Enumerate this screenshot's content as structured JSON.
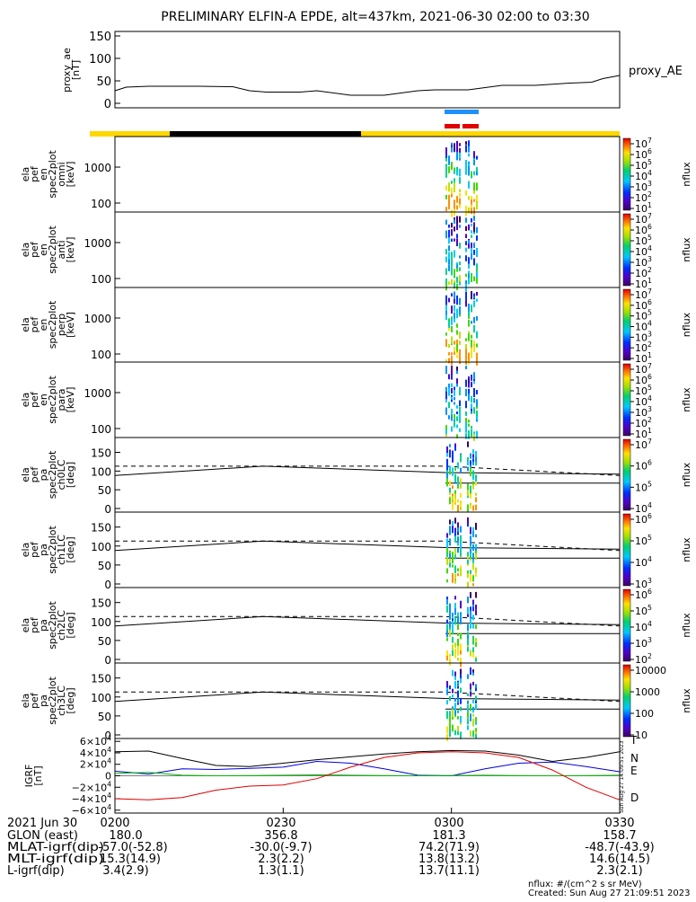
{
  "title": "PRELIMINARY ELFIN-A EPDE, alt=437km, 2021-06-30 02:00 to 03:30",
  "colors": {
    "bar_yellow": "#ffd700",
    "bar_black": "#000000",
    "mark_blue": "#1e90ff",
    "mark_red": "#e00000",
    "N": "#0000dd",
    "E": "#00bb00",
    "D": "#dd0000",
    "T": "#000000"
  },
  "chart_data": [
    {
      "type": "line",
      "name": "proxy_ae",
      "ylabel_lines": [
        "proxy_ae",
        "[nT]"
      ],
      "ylim": [
        -10,
        160
      ],
      "yticks": [
        "150",
        "100",
        "50",
        "0"
      ],
      "series": [
        {
          "name": "proxy_AE",
          "x": [
            "02:00",
            "02:02",
            "02:06",
            "02:15",
            "02:21",
            "02:24",
            "02:27",
            "02:33",
            "02:36",
            "02:42",
            "02:48",
            "02:54",
            "02:57",
            "03:03",
            "03:09",
            "03:15",
            "03:21",
            "03:25",
            "03:27",
            "03:30"
          ],
          "values": [
            28,
            36,
            38,
            38,
            37,
            28,
            25,
            25,
            28,
            18,
            18,
            28,
            30,
            30,
            40,
            40,
            45,
            47,
            55,
            62
          ]
        }
      ]
    },
    {
      "type": "heatmap",
      "name": "spectrograms",
      "panels": [
        {
          "ylabel_lines": [
            "ela",
            "pef",
            "en",
            "spec2plot",
            "omni",
            "[keV]"
          ],
          "yticks": [
            "1000",
            "100"
          ],
          "cbar_ticks": [
            "10^7",
            "10^6",
            "10^5",
            "10^4",
            "10^3",
            "10^2",
            "10^1"
          ],
          "cbar_label": "nflux"
        },
        {
          "ylabel_lines": [
            "ela",
            "pef",
            "en",
            "spec2plot",
            "anti",
            "[keV]"
          ],
          "yticks": [
            "1000",
            "100"
          ],
          "cbar_ticks": [
            "10^7",
            "10^6",
            "10^5",
            "10^4",
            "10^3",
            "10^2",
            "10^1"
          ],
          "cbar_label": "nflux"
        },
        {
          "ylabel_lines": [
            "ela",
            "pef",
            "en",
            "spec2plot",
            "perp",
            "[keV]"
          ],
          "yticks": [
            "1000",
            "100"
          ],
          "cbar_ticks": [
            "10^7",
            "10^6",
            "10^5",
            "10^4",
            "10^3",
            "10^2",
            "10^1"
          ],
          "cbar_label": "nflux"
        },
        {
          "ylabel_lines": [
            "ela",
            "pef",
            "en",
            "spec2plot",
            "para",
            "[keV]"
          ],
          "yticks": [
            "1000",
            "100"
          ],
          "cbar_ticks": [
            "10^7",
            "10^6",
            "10^5",
            "10^4",
            "10^3",
            "10^2",
            "10^1"
          ],
          "cbar_label": "nflux"
        }
      ]
    },
    {
      "type": "heatmap",
      "name": "pitch_angle",
      "panels": [
        {
          "ylabel_lines": [
            "ela",
            "pef",
            "pa",
            "spec2plot",
            "ch0LC",
            "[deg]"
          ],
          "yticks": [
            "150",
            "100",
            "50",
            "0"
          ],
          "cbar_ticks": [
            "10^7",
            "10^6",
            "10^5",
            "10^4"
          ],
          "cbar_label": "nflux"
        },
        {
          "ylabel_lines": [
            "ela",
            "pef",
            "pa",
            "spec2plot",
            "ch1LC",
            "[deg]"
          ],
          "yticks": [
            "150",
            "100",
            "50",
            "0"
          ],
          "cbar_ticks": [
            "10^6",
            "10^5",
            "10^4",
            "10^3"
          ],
          "cbar_label": "nflux"
        },
        {
          "ylabel_lines": [
            "ela",
            "pef",
            "pa",
            "spec2plot",
            "ch2LC",
            "[deg]"
          ],
          "yticks": [
            "150",
            "100",
            "50",
            "0"
          ],
          "cbar_ticks": [
            "10^6",
            "10^5",
            "10^4",
            "10^3",
            "10^2"
          ],
          "cbar_label": "nflux"
        },
        {
          "ylabel_lines": [
            "ela",
            "pef",
            "pa",
            "spec2plot",
            "ch3LC",
            "[deg]"
          ],
          "yticks": [
            "150",
            "100",
            "50",
            "0"
          ],
          "cbar_ticks": [
            "10000",
            "1000",
            "100",
            "10"
          ],
          "cbar_label": "nflux"
        }
      ]
    },
    {
      "type": "line",
      "name": "IGRF",
      "ylabel_lines": [
        "IGRF",
        "[nT]"
      ],
      "ylim": [
        -65000,
        65000
      ],
      "yticks": [
        "6×10^4",
        "4×10^4",
        "2×10^4",
        "0",
        "−2×10^4",
        "−4×10^4",
        "−6×10^4"
      ],
      "x": [
        "02:00",
        "02:06",
        "02:12",
        "02:18",
        "02:24",
        "02:30",
        "02:36",
        "02:42",
        "02:48",
        "02:54",
        "03:00",
        "03:06",
        "03:12",
        "03:18",
        "03:24",
        "03:30"
      ],
      "series": [
        {
          "name": "T",
          "values": [
            42000,
            43000,
            30000,
            18000,
            16000,
            22000,
            28000,
            33000,
            38000,
            42000,
            44000,
            43000,
            36000,
            25000,
            32000,
            42000
          ]
        },
        {
          "name": "N",
          "values": [
            8000,
            3000,
            12000,
            11000,
            13000,
            15000,
            25000,
            22000,
            12000,
            1000,
            0,
            12000,
            22000,
            24000,
            16000,
            7000
          ]
        },
        {
          "name": "E",
          "values": [
            4000,
            6000,
            1000,
            0,
            500,
            1000,
            1500,
            1000,
            500,
            0,
            500,
            1000,
            500,
            0,
            500,
            1000
          ]
        },
        {
          "name": "D",
          "values": [
            -40000,
            -42000,
            -38000,
            -25000,
            -18000,
            -16000,
            -5000,
            15000,
            32000,
            40000,
            42000,
            40000,
            32000,
            10000,
            -20000,
            -42000
          ]
        }
      ],
      "line_labels": [
        "T",
        "N",
        "E",
        "D"
      ]
    }
  ],
  "footer": {
    "date": "2021 Jun 30",
    "time_ticks": [
      "0200",
      "0230",
      "0300",
      "0330"
    ],
    "rows": [
      {
        "label": "GLON (east)",
        "values": [
          "180.0",
          "356.8",
          "181.3",
          "158.7"
        ]
      },
      {
        "label": "MLAT-igrf(dip)",
        "values": [
          "-57.0(-52.8)",
          "-30.0(-9.7)",
          "74.2(71.9)",
          "-48.7(-43.9)"
        ]
      },
      {
        "label": "MLT-igrf(dip)",
        "values": [
          "15.3(14.9)",
          "2.3(2.2)",
          "13.8(13.2)",
          "14.6(14.5)"
        ]
      },
      {
        "label": "L-igrf(dip)",
        "values": [
          "3.4(2.9)",
          "1.3(1.1)",
          "13.7(11.1)",
          "2.3(2.1)"
        ]
      }
    ],
    "units_note": "nflux: #/(cm^2 s sr MeV)",
    "created": "Created: Sun Aug 27 21:09:51 2023",
    "side_stamp": "Sun Aug 27 14:09:51 2023"
  }
}
